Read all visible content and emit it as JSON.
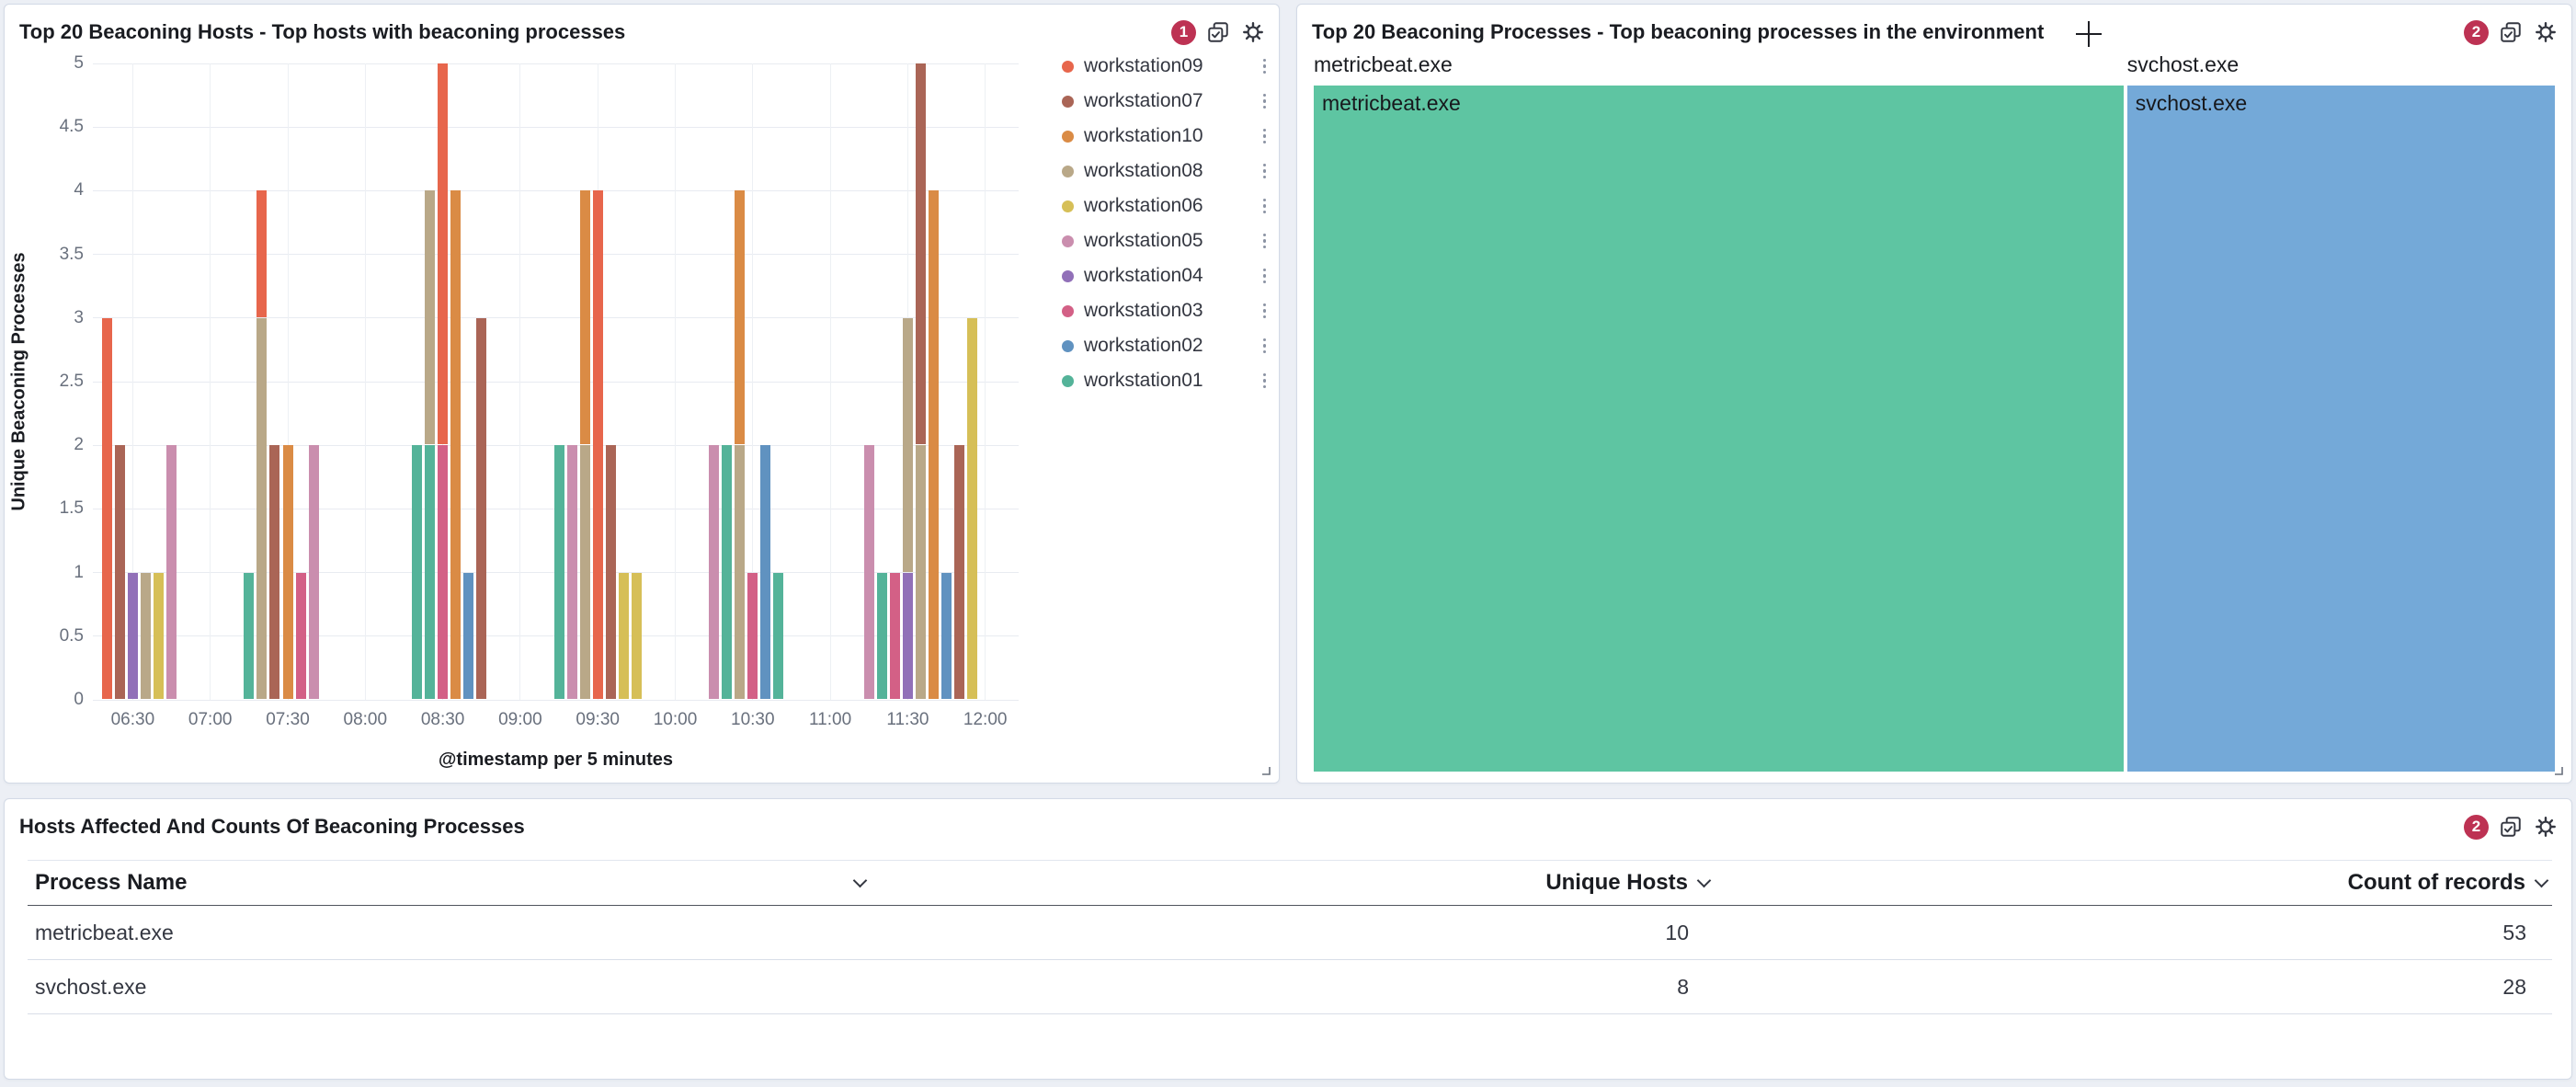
{
  "colors": {
    "page_bg": "#eceff5",
    "panel_border": "#d3dae6",
    "badge_bg": "#bd3253",
    "title_text": "#1a1c21",
    "axis_text": "#69707d",
    "grid": "#e8ebf1"
  },
  "panels": {
    "hosts": {
      "title": "Top 20 Beaconing Hosts - Top hosts with beaconing processes",
      "badge": "1"
    },
    "processes": {
      "title": "Top 20 Beaconing Processes - Top beaconing processes in the environment",
      "badge": "2"
    },
    "table": {
      "title": "Hosts Affected And Counts Of Beaconing Processes",
      "badge": "2"
    }
  },
  "chart_data": [
    {
      "type": "bar",
      "stacked": true,
      "title": "Top 20 Beaconing Hosts - Top hosts with beaconing processes",
      "xlabel": "@timestamp per 5 minutes",
      "ylabel": "Unique Beaconing Processes",
      "ylim": [
        0,
        5
      ],
      "grid": true,
      "legend_position": "right",
      "y_ticks": [
        "0",
        "0.5",
        "1",
        "1.5",
        "2",
        "2.5",
        "3",
        "3.5",
        "4",
        "4.5",
        "5"
      ],
      "x_ticks": [
        "06:30",
        "07:00",
        "07:30",
        "08:00",
        "08:30",
        "09:00",
        "09:30",
        "10:00",
        "10:30",
        "11:00",
        "11:30",
        "12:00"
      ],
      "series": [
        {
          "name": "workstation09",
          "color": "#E7664C"
        },
        {
          "name": "workstation07",
          "color": "#AA6556"
        },
        {
          "name": "workstation10",
          "color": "#DA8B45"
        },
        {
          "name": "workstation08",
          "color": "#B9A888"
        },
        {
          "name": "workstation06",
          "color": "#D6BF57"
        },
        {
          "name": "workstation05",
          "color": "#CA8EAE"
        },
        {
          "name": "workstation04",
          "color": "#9170B8"
        },
        {
          "name": "workstation03",
          "color": "#D36086"
        },
        {
          "name": "workstation02",
          "color": "#6092C0"
        },
        {
          "name": "workstation01",
          "color": "#54B399"
        }
      ],
      "buckets": [
        {
          "time": "06:20",
          "stack": [
            [
              "workstation09",
              3
            ]
          ]
        },
        {
          "time": "06:25",
          "stack": [
            [
              "workstation07",
              2
            ]
          ]
        },
        {
          "time": "06:30",
          "stack": [
            [
              "workstation04",
              1
            ]
          ]
        },
        {
          "time": "06:35",
          "stack": [
            [
              "workstation08",
              1
            ]
          ]
        },
        {
          "time": "06:40",
          "stack": [
            [
              "workstation06",
              1
            ]
          ]
        },
        {
          "time": "06:45",
          "stack": [
            [
              "workstation05",
              2
            ]
          ]
        },
        {
          "time": "07:15",
          "stack": [
            [
              "workstation01",
              1
            ]
          ]
        },
        {
          "time": "07:20",
          "stack": [
            [
              "workstation08",
              3
            ],
            [
              "workstation09",
              1
            ]
          ]
        },
        {
          "time": "07:25",
          "stack": [
            [
              "workstation07",
              2
            ]
          ]
        },
        {
          "time": "07:30",
          "stack": [
            [
              "workstation10",
              2
            ]
          ]
        },
        {
          "time": "07:35",
          "stack": [
            [
              "workstation03",
              1
            ]
          ]
        },
        {
          "time": "07:40",
          "stack": [
            [
              "workstation05",
              2
            ]
          ]
        },
        {
          "time": "08:20",
          "stack": [
            [
              "workstation01",
              2
            ]
          ]
        },
        {
          "time": "08:25",
          "stack": [
            [
              "workstation01",
              2
            ],
            [
              "workstation08",
              2
            ]
          ]
        },
        {
          "time": "08:30",
          "stack": [
            [
              "workstation03",
              2
            ],
            [
              "workstation09",
              3
            ]
          ]
        },
        {
          "time": "08:35",
          "stack": [
            [
              "workstation10",
              4
            ]
          ]
        },
        {
          "time": "08:40",
          "stack": [
            [
              "workstation02",
              1
            ]
          ]
        },
        {
          "time": "08:45",
          "stack": [
            [
              "workstation07",
              3
            ]
          ]
        },
        {
          "time": "09:15",
          "stack": [
            [
              "workstation01",
              2
            ]
          ]
        },
        {
          "time": "09:20",
          "stack": [
            [
              "workstation05",
              2
            ]
          ]
        },
        {
          "time": "09:25",
          "stack": [
            [
              "workstation08",
              2
            ],
            [
              "workstation10",
              2
            ]
          ]
        },
        {
          "time": "09:30",
          "stack": [
            [
              "workstation09",
              4
            ]
          ]
        },
        {
          "time": "09:35",
          "stack": [
            [
              "workstation07",
              2
            ]
          ]
        },
        {
          "time": "09:40",
          "stack": [
            [
              "workstation06",
              1
            ]
          ]
        },
        {
          "time": "09:45",
          "stack": [
            [
              "workstation06",
              1
            ]
          ]
        },
        {
          "time": "10:15",
          "stack": [
            [
              "workstation05",
              2
            ]
          ]
        },
        {
          "time": "10:20",
          "stack": [
            [
              "workstation01",
              2
            ]
          ]
        },
        {
          "time": "10:25",
          "stack": [
            [
              "workstation08",
              2
            ],
            [
              "workstation10",
              2
            ]
          ]
        },
        {
          "time": "10:30",
          "stack": [
            [
              "workstation03",
              1
            ]
          ]
        },
        {
          "time": "10:35",
          "stack": [
            [
              "workstation02",
              2
            ]
          ]
        },
        {
          "time": "10:40",
          "stack": [
            [
              "workstation01",
              1
            ]
          ]
        },
        {
          "time": "11:15",
          "stack": [
            [
              "workstation05",
              2
            ]
          ]
        },
        {
          "time": "11:20",
          "stack": [
            [
              "workstation01",
              1
            ]
          ]
        },
        {
          "time": "11:25",
          "stack": [
            [
              "workstation03",
              1
            ]
          ]
        },
        {
          "time": "11:30",
          "stack": [
            [
              "workstation04",
              1
            ],
            [
              "workstation08",
              2
            ]
          ]
        },
        {
          "time": "11:35",
          "stack": [
            [
              "workstation08",
              2
            ],
            [
              "workstation07",
              3
            ]
          ]
        },
        {
          "time": "11:40",
          "stack": [
            [
              "workstation10",
              4
            ]
          ]
        },
        {
          "time": "11:45",
          "stack": [
            [
              "workstation02",
              1
            ]
          ]
        },
        {
          "time": "11:50",
          "stack": [
            [
              "workstation07",
              2
            ]
          ]
        },
        {
          "time": "11:55",
          "stack": [
            [
              "workstation06",
              3
            ]
          ]
        }
      ]
    },
    {
      "type": "treemap",
      "title": "Top 20 Beaconing Processes - Top beaconing processes in the environment",
      "cells": [
        {
          "name": "metricbeat.exe",
          "value": 53,
          "color": "#5ec5a2"
        },
        {
          "name": "svchost.exe",
          "value": 28,
          "color": "#74a9d8"
        }
      ]
    },
    {
      "type": "table",
      "title": "Hosts Affected And Counts Of Beaconing Processes",
      "columns": [
        "Process Name",
        "Unique Hosts",
        "Count of records"
      ],
      "rows": [
        [
          "metricbeat.exe",
          "10",
          "53"
        ],
        [
          "svchost.exe",
          "8",
          "28"
        ]
      ]
    }
  ]
}
